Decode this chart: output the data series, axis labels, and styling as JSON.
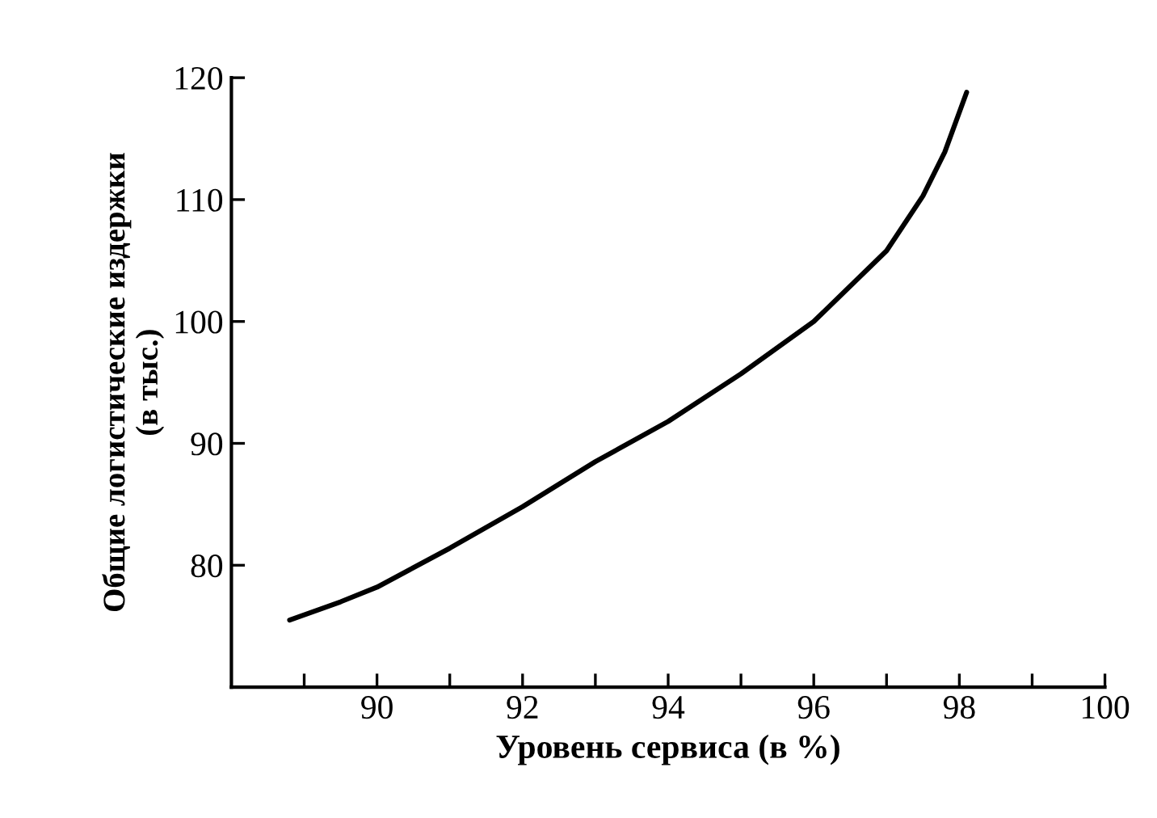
{
  "chart_data": {
    "type": "line",
    "xlabel": "Уровень сервиса (в %)",
    "ylabel": "Общие логистические издержки\n(в тыс.)",
    "x": [
      88.8,
      89.5,
      90,
      91,
      92,
      93,
      94,
      95,
      96,
      97,
      97.5,
      97.8,
      98.1
    ],
    "series": [
      {
        "color": "#000000",
        "values": [
          75.5,
          77.0,
          78.2,
          81.4,
          84.8,
          88.5,
          91.8,
          95.7,
          100,
          105.8,
          110.3,
          113.9,
          118.8
        ]
      }
    ],
    "xlim": [
      88,
      100
    ],
    "ylim": [
      70,
      120
    ],
    "xticks": [
      {
        "value": 89,
        "label": null
      },
      90,
      {
        "value": 91,
        "label": null
      },
      92,
      {
        "value": 93,
        "label": null
      },
      94,
      {
        "value": 95,
        "label": null
      },
      96,
      {
        "value": 97,
        "label": null
      },
      98,
      {
        "value": 99,
        "label": null
      },
      100
    ],
    "yticks": [
      80,
      90,
      100,
      110,
      120
    ],
    "grid": false,
    "line_style": "solid",
    "marker": "none"
  }
}
